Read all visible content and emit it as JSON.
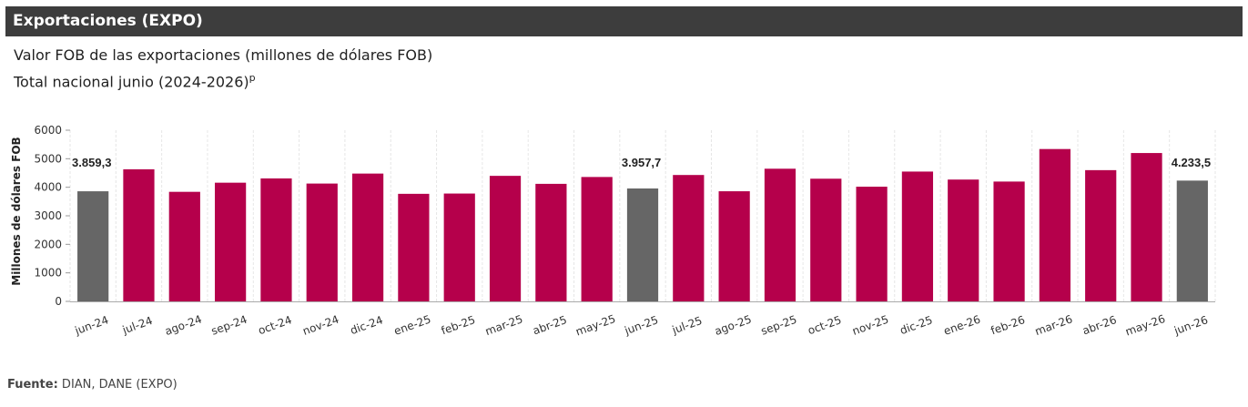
{
  "header": {
    "title": "Exportaciones (EXPO)"
  },
  "subtitle": {
    "line1": "Valor FOB de las exportaciones (millones de dólares FOB)",
    "line2": "Total nacional junio (2024-2026)",
    "line2_sup": "p"
  },
  "source": {
    "label": "Fuente:",
    "text": " DIAN, DANE (EXPO)"
  },
  "colors": {
    "highlight": "#666666",
    "regular": "#b5004b",
    "header_bg": "#3d3d3d"
  },
  "chart_data": {
    "type": "bar",
    "ylabel": "Millones de dólares FOB",
    "ylim": [
      0,
      6000
    ],
    "yticks": [
      0,
      1000,
      2000,
      3000,
      4000,
      5000,
      6000
    ],
    "grid": "vertical",
    "categories": [
      "jun-24",
      "jul-24",
      "ago-24",
      "sep-24",
      "oct-24",
      "nov-24",
      "dic-24",
      "ene-25",
      "feb-25",
      "mar-25",
      "abr-25",
      "may-25",
      "jun-25",
      "jul-25",
      "ago-25",
      "sep-25",
      "oct-25",
      "nov-25",
      "dic-25",
      "ene-26",
      "feb-26",
      "mar-26",
      "abr-26",
      "may-26",
      "jun-26"
    ],
    "values": [
      3859.3,
      4630,
      3840,
      4160,
      4310,
      4130,
      4480,
      3770,
      3780,
      4400,
      4120,
      4360,
      3957.7,
      4430,
      3860,
      4650,
      4300,
      4020,
      4550,
      4270,
      4200,
      5340,
      4600,
      5200,
      4233.5
    ],
    "highlighted": [
      0,
      12,
      24
    ],
    "data_labels": [
      {
        "index": 0,
        "text": "3.859,3"
      },
      {
        "index": 12,
        "text": "3.957,7"
      },
      {
        "index": 24,
        "text": "4.233,5"
      }
    ]
  }
}
